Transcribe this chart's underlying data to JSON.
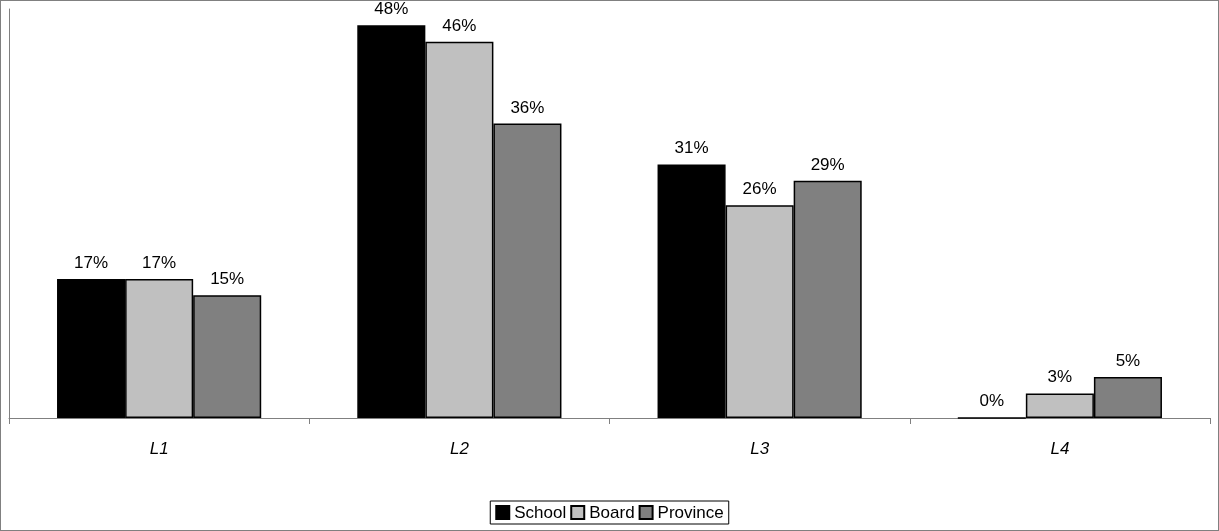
{
  "chart_data": {
    "type": "bar",
    "categories": [
      "L1",
      "L2",
      "L3",
      "L4"
    ],
    "series": [
      {
        "name": "School",
        "color": "#000000",
        "values": [
          17,
          48,
          31,
          0
        ],
        "value_labels": [
          "17%",
          "48%",
          "31%",
          "0%"
        ]
      },
      {
        "name": "Board",
        "color": "#c0c0c0",
        "values": [
          17,
          46,
          26,
          3
        ],
        "value_labels": [
          "17%",
          "46%",
          "26%",
          "3%"
        ]
      },
      {
        "name": "Province",
        "color": "#808080",
        "values": [
          15,
          36,
          29,
          5
        ],
        "value_labels": [
          "15%",
          "36%",
          "29%",
          "5%"
        ]
      }
    ],
    "tick_labels": "x",
    "grid": false,
    "legend": "bottom"
  }
}
